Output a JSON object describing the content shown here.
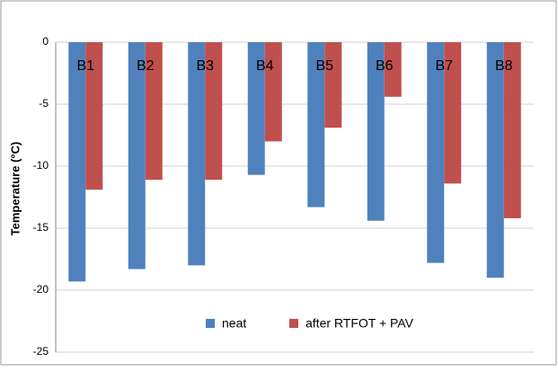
{
  "chart_data": {
    "type": "bar",
    "y_label": "Temperature (°C)",
    "categories": [
      "B1",
      "B2",
      "B3",
      "B4",
      "B5",
      "B6",
      "B7",
      "B8"
    ],
    "series": [
      {
        "name": "neat",
        "color": "#4f81bd",
        "values": [
          -19.3,
          -18.3,
          -18.0,
          -10.7,
          -13.3,
          -14.4,
          -17.8,
          -19.0
        ]
      },
      {
        "name": "after RTFOT + PAV",
        "color": "#c0504d",
        "values": [
          -11.9,
          -11.1,
          -11.1,
          -8.0,
          -6.9,
          -4.4,
          -11.4,
          -14.2
        ]
      }
    ],
    "ylim": [
      -25,
      0
    ],
    "yticks": [
      0,
      -5,
      -10,
      -15,
      -20,
      -25
    ],
    "grid": true
  }
}
